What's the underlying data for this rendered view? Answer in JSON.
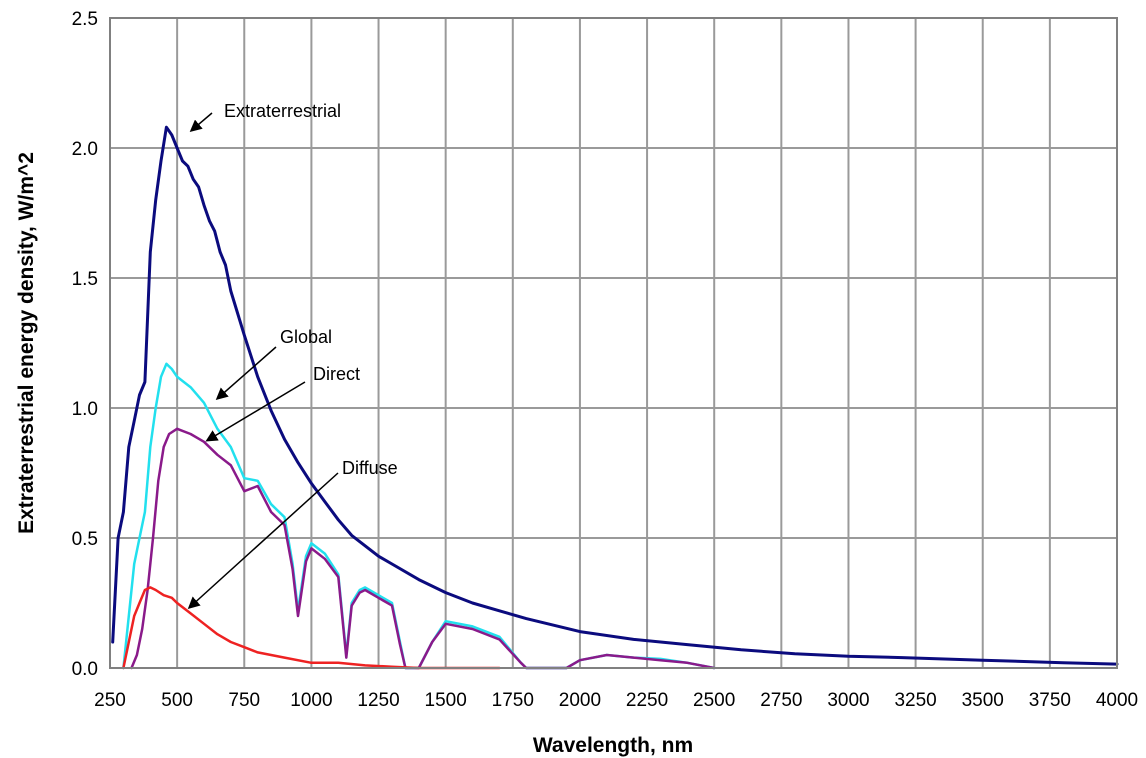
{
  "chart_data": {
    "type": "line",
    "title": "",
    "xlabel": "Wavelength, nm",
    "ylabel": "Extraterrestrial energy density, W/m^2",
    "xlim": [
      250,
      4000
    ],
    "ylim": [
      0,
      2.5
    ],
    "x_ticks": [
      "250",
      "500",
      "750",
      "1000",
      "1250",
      "1500",
      "1750",
      "2000",
      "2250",
      "2500",
      "2750",
      "3000",
      "3250",
      "3500",
      "3750",
      "4000"
    ],
    "y_ticks": [
      "0.0",
      "0.5",
      "1.0",
      "1.5",
      "2.0",
      "2.5"
    ],
    "grid": true,
    "legend": "none",
    "annotations": [
      "Extraterrestrial",
      "Global",
      "Direct",
      "Diffuse"
    ],
    "series": [
      {
        "name": "Extraterrestrial",
        "color": "#0b0b7e",
        "x": [
          260,
          280,
          300,
          320,
          340,
          360,
          380,
          400,
          420,
          440,
          460,
          480,
          500,
          520,
          540,
          560,
          580,
          600,
          620,
          640,
          660,
          680,
          700,
          750,
          800,
          850,
          900,
          950,
          1000,
          1050,
          1100,
          1150,
          1200,
          1250,
          1300,
          1400,
          1500,
          1600,
          1700,
          1800,
          2000,
          2200,
          2400,
          2600,
          2800,
          3000,
          3200,
          3500,
          3800,
          4000
        ],
        "values": [
          0.1,
          0.5,
          0.6,
          0.85,
          0.95,
          1.05,
          1.1,
          1.6,
          1.8,
          1.95,
          2.08,
          2.05,
          2.0,
          1.95,
          1.93,
          1.88,
          1.85,
          1.78,
          1.72,
          1.68,
          1.6,
          1.55,
          1.45,
          1.28,
          1.12,
          0.99,
          0.88,
          0.79,
          0.71,
          0.64,
          0.57,
          0.51,
          0.47,
          0.43,
          0.4,
          0.34,
          0.29,
          0.25,
          0.22,
          0.19,
          0.14,
          0.11,
          0.09,
          0.07,
          0.055,
          0.045,
          0.04,
          0.03,
          0.02,
          0.015
        ]
      },
      {
        "name": "Global",
        "color": "#22e0ee",
        "x": [
          300,
          320,
          340,
          360,
          380,
          400,
          420,
          440,
          460,
          480,
          500,
          550,
          600,
          650,
          700,
          750,
          800,
          850,
          900,
          930,
          950,
          980,
          1000,
          1050,
          1100,
          1130,
          1150,
          1180,
          1200,
          1250,
          1300,
          1330,
          1350,
          1400,
          1450,
          1500,
          1600,
          1700,
          1780,
          1800,
          1950,
          2000,
          2100,
          2200,
          2300,
          2400,
          2500
        ],
        "values": [
          0.0,
          0.2,
          0.4,
          0.5,
          0.6,
          0.85,
          1.0,
          1.12,
          1.17,
          1.15,
          1.12,
          1.08,
          1.02,
          0.92,
          0.85,
          0.73,
          0.72,
          0.63,
          0.58,
          0.4,
          0.22,
          0.43,
          0.48,
          0.44,
          0.36,
          0.05,
          0.25,
          0.3,
          0.31,
          0.28,
          0.25,
          0.1,
          0.0,
          0.0,
          0.1,
          0.18,
          0.16,
          0.12,
          0.02,
          0.0,
          0.0,
          0.03,
          0.05,
          0.04,
          0.035,
          0.02,
          0.0
        ]
      },
      {
        "name": "Direct",
        "color": "#8a1a8a",
        "x": [
          330,
          350,
          370,
          390,
          410,
          430,
          450,
          470,
          500,
          550,
          600,
          650,
          700,
          750,
          800,
          850,
          900,
          930,
          950,
          980,
          1000,
          1050,
          1100,
          1130,
          1150,
          1180,
          1200,
          1250,
          1300,
          1330,
          1350,
          1400,
          1450,
          1500,
          1600,
          1700,
          1780,
          1800,
          1950,
          2000,
          2100,
          2200,
          2300,
          2400,
          2500
        ],
        "values": [
          0.0,
          0.05,
          0.15,
          0.3,
          0.5,
          0.72,
          0.85,
          0.9,
          0.92,
          0.9,
          0.87,
          0.82,
          0.78,
          0.68,
          0.7,
          0.6,
          0.55,
          0.38,
          0.2,
          0.41,
          0.46,
          0.42,
          0.35,
          0.04,
          0.24,
          0.29,
          0.3,
          0.27,
          0.24,
          0.09,
          0.0,
          0.0,
          0.1,
          0.17,
          0.15,
          0.11,
          0.02,
          0.0,
          0.0,
          0.03,
          0.05,
          0.04,
          0.03,
          0.02,
          0.0
        ]
      },
      {
        "name": "Diffuse",
        "color": "#ee2222",
        "x": [
          300,
          320,
          340,
          360,
          380,
          400,
          420,
          450,
          480,
          500,
          550,
          600,
          650,
          700,
          750,
          800,
          900,
          1000,
          1100,
          1200,
          1300,
          1400,
          1500,
          1600,
          1700
        ],
        "values": [
          0.0,
          0.1,
          0.2,
          0.25,
          0.3,
          0.31,
          0.3,
          0.28,
          0.27,
          0.25,
          0.21,
          0.17,
          0.13,
          0.1,
          0.08,
          0.06,
          0.04,
          0.02,
          0.02,
          0.01,
          0.005,
          0.0,
          0.0,
          0.0,
          0.0
        ]
      }
    ]
  }
}
